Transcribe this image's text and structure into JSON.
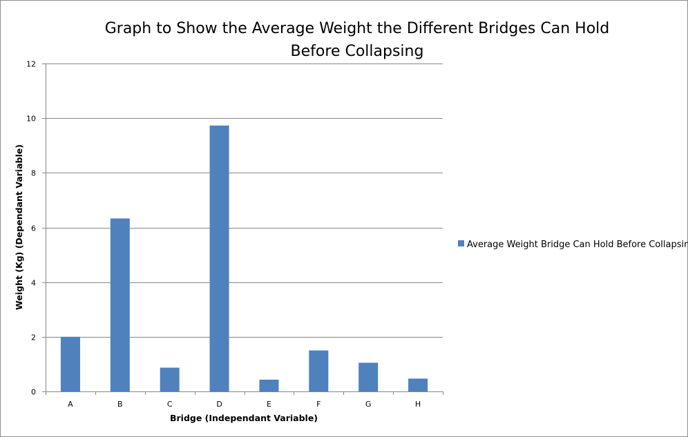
{
  "chart_data": {
    "type": "bar",
    "title_lines": [
      "Graph to Show the Average Weight the Different Bridges Can Hold",
      "Before Collapsing"
    ],
    "xlabel": "Bridge (Independant Variable)",
    "ylabel": "Weight (Kg) (Dependant Variable)",
    "categories": [
      "A",
      "B",
      "C",
      "D",
      "E",
      "F",
      "G",
      "H"
    ],
    "series": [
      {
        "name": "Average Weight Bridge Can Hold Before Collapsing",
        "values": [
          2.0,
          6.33,
          0.87,
          9.73,
          0.43,
          1.5,
          1.05,
          0.47
        ],
        "color": "#4F81BD"
      }
    ],
    "ylim": [
      0,
      12
    ],
    "yticks": [
      "0",
      "2",
      "4",
      "6",
      "8",
      "10",
      "12"
    ],
    "grid": true,
    "legend_position": "right"
  }
}
